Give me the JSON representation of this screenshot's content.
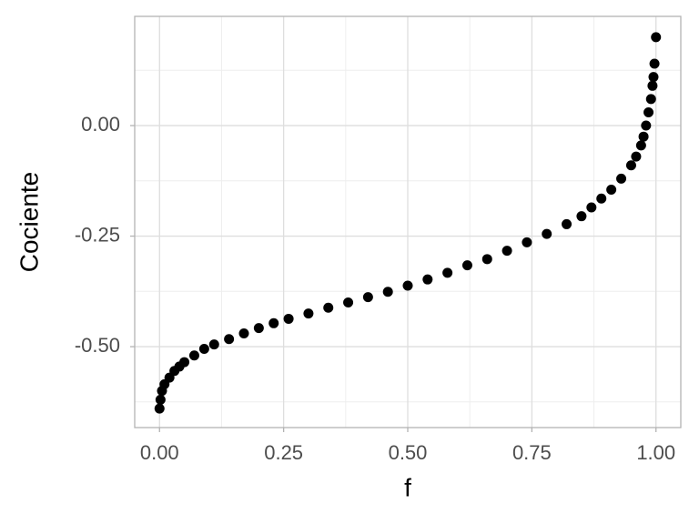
{
  "chart_data": {
    "type": "scatter",
    "x_label": "f",
    "y_label": "Cociente",
    "x": [
      0.0,
      0.002,
      0.005,
      0.01,
      0.02,
      0.03,
      0.04,
      0.05,
      0.07,
      0.09,
      0.11,
      0.14,
      0.17,
      0.2,
      0.23,
      0.26,
      0.3,
      0.34,
      0.38,
      0.42,
      0.46,
      0.5,
      0.54,
      0.58,
      0.62,
      0.66,
      0.7,
      0.74,
      0.78,
      0.82,
      0.85,
      0.87,
      0.89,
      0.91,
      0.93,
      0.95,
      0.96,
      0.97,
      0.975,
      0.98,
      0.985,
      0.99,
      0.993,
      0.995,
      0.997,
      1.0
    ],
    "values": [
      -0.64,
      -0.62,
      -0.6,
      -0.585,
      -0.57,
      -0.555,
      -0.545,
      -0.535,
      -0.52,
      -0.505,
      -0.495,
      -0.483,
      -0.47,
      -0.458,
      -0.447,
      -0.437,
      -0.425,
      -0.412,
      -0.4,
      -0.388,
      -0.376,
      -0.362,
      -0.348,
      -0.333,
      -0.316,
      -0.302,
      -0.283,
      -0.264,
      -0.245,
      -0.223,
      -0.205,
      -0.185,
      -0.165,
      -0.145,
      -0.12,
      -0.09,
      -0.07,
      -0.045,
      -0.025,
      0.0,
      0.03,
      0.06,
      0.09,
      0.11,
      0.14,
      0.2
    ],
    "color": "#000000",
    "xlim": [
      -0.05,
      1.05
    ],
    "ylim": [
      -0.683,
      0.247
    ],
    "xticks": [
      {
        "value": 0,
        "label": "0.00"
      },
      {
        "value": 0.25,
        "label": "0.25"
      },
      {
        "value": 0.5,
        "label": "0.50"
      },
      {
        "value": 0.75,
        "label": "0.75"
      },
      {
        "value": 1,
        "label": "1.00"
      }
    ],
    "yticks": [
      {
        "value": -0.5,
        "label": "-0.50"
      },
      {
        "value": -0.25,
        "label": "-0.25"
      },
      {
        "value": 0,
        "label": "0.00"
      }
    ],
    "grid": true,
    "minor_grid": true
  }
}
